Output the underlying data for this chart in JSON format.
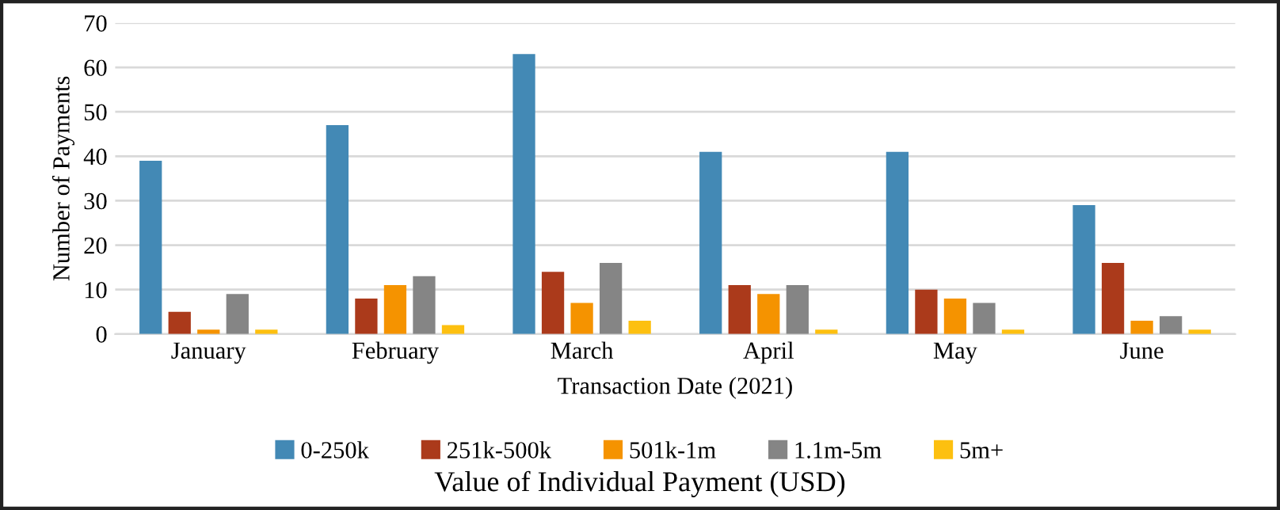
{
  "chart_data": {
    "type": "bar",
    "categories": [
      "January",
      "February",
      "March",
      "April",
      "May",
      "June"
    ],
    "series": [
      {
        "name": "0-250k",
        "color": "#4389b5",
        "values": [
          39,
          47,
          63,
          41,
          41,
          29
        ]
      },
      {
        "name": "251k-500k",
        "color": "#ab3a1b",
        "values": [
          5,
          8,
          14,
          11,
          10,
          16
        ]
      },
      {
        "name": "501k-1m",
        "color": "#f59300",
        "values": [
          1,
          11,
          7,
          9,
          8,
          3
        ]
      },
      {
        "name": "1.1m-5m",
        "color": "#858585",
        "values": [
          9,
          13,
          16,
          11,
          7,
          4
        ]
      },
      {
        "name": "5m+",
        "color": "#fdc010",
        "values": [
          1,
          2,
          3,
          1,
          1,
          1
        ]
      }
    ],
    "xlabel": "Transaction Date (2021)",
    "ylabel": "Number of Payments",
    "legend_title": "Value of Individual Payment (USD)",
    "ylim": [
      0,
      70
    ],
    "yticks": [
      0,
      10,
      20,
      30,
      40,
      50,
      60,
      70
    ],
    "grid": "y",
    "legend": "bottom"
  }
}
